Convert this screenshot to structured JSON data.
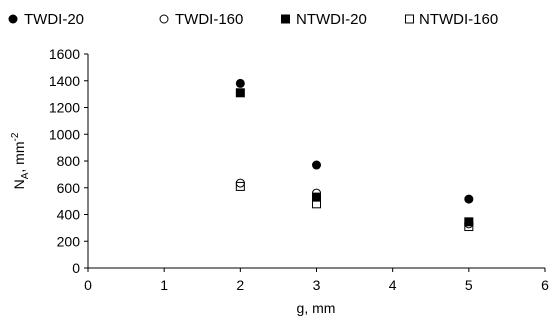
{
  "chart_data": {
    "type": "scatter",
    "title": "",
    "xlabel": "g, mm",
    "ylabel_main": "N",
    "ylabel_sub": "A",
    "ylabel_rest": ", mm",
    "ylabel_sup": "-2",
    "xlim": [
      0,
      6
    ],
    "ylim": [
      0,
      1600
    ],
    "xticks": [
      0,
      1,
      2,
      3,
      4,
      5,
      6
    ],
    "yticks": [
      0,
      200,
      400,
      600,
      800,
      1000,
      1200,
      1400,
      1600
    ],
    "grid": false,
    "legend_position": "top",
    "series": [
      {
        "name": "TWDI-20",
        "marker": "circle-filled",
        "x": [
          2,
          3,
          5
        ],
        "y": [
          1380,
          770,
          515
        ]
      },
      {
        "name": "TWDI-160",
        "marker": "circle-open",
        "x": [
          2,
          3,
          5
        ],
        "y": [
          635,
          560,
          330
        ]
      },
      {
        "name": "NTWDI-20",
        "marker": "square-filled",
        "x": [
          2,
          3,
          5
        ],
        "y": [
          1310,
          530,
          345
        ]
      },
      {
        "name": "NTWDI-160",
        "marker": "square-open",
        "x": [
          2,
          3,
          5
        ],
        "y": [
          610,
          480,
          310
        ]
      }
    ]
  }
}
